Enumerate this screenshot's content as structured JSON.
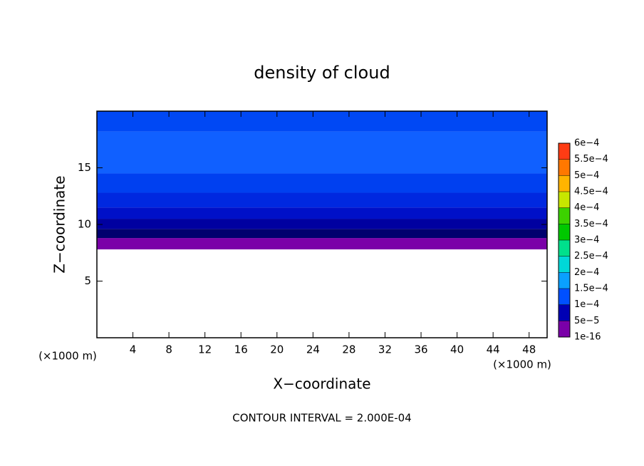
{
  "chart_data": {
    "type": "contour",
    "title": "density of cloud",
    "x_label": "X−coordinate",
    "y_label": "Z−coordinate",
    "x_unit_left": "(×1000 m)",
    "x_unit_right": "(×1000 m)",
    "footer": "CONTOUR INTERVAL = 2.000E-04",
    "xlim": [
      0,
      50
    ],
    "ylim": [
      0,
      20
    ],
    "xticks": [
      4,
      8,
      12,
      16,
      20,
      24,
      28,
      32,
      36,
      40,
      44,
      48
    ],
    "yticks": [
      5,
      10,
      15
    ],
    "field": {
      "z_bounds": [
        7.8,
        8.8,
        9.6,
        10.5,
        11.5,
        12.8,
        14.5,
        18.2,
        20
      ],
      "colors": [
        "#7a00a8",
        "#00006e",
        "#0000a0",
        "#0010c8",
        "#0028e0",
        "#0040f0",
        "#1060ff",
        "#0048f4"
      ]
    },
    "colorbar": {
      "ticks": [
        {
          "value": 1e-16,
          "label": "1e-16"
        },
        {
          "value": 5e-05,
          "label": "5e−5"
        },
        {
          "value": 0.0001,
          "label": "1e−4"
        },
        {
          "value": 0.00015,
          "label": "1.5e−4"
        },
        {
          "value": 0.0002,
          "label": "2e−4"
        },
        {
          "value": 0.00025,
          "label": "2.5e−4"
        },
        {
          "value": 0.0003,
          "label": "3e−4"
        },
        {
          "value": 0.00035,
          "label": "3.5e−4"
        },
        {
          "value": 0.0004,
          "label": "4e−4"
        },
        {
          "value": 0.00045,
          "label": "4.5e−4"
        },
        {
          "value": 0.0005,
          "label": "5e−4"
        },
        {
          "value": 0.00055,
          "label": "5.5e−4"
        },
        {
          "value": 0.0006,
          "label": "6e−4"
        }
      ],
      "colors": [
        "#7a00a8",
        "#0000b4",
        "#0050ff",
        "#0aa0ff",
        "#00d8d8",
        "#00e08c",
        "#00c800",
        "#3cd200",
        "#c8e600",
        "#ffb400",
        "#ff7800",
        "#ff3c14",
        "#ff8c8c"
      ]
    }
  }
}
